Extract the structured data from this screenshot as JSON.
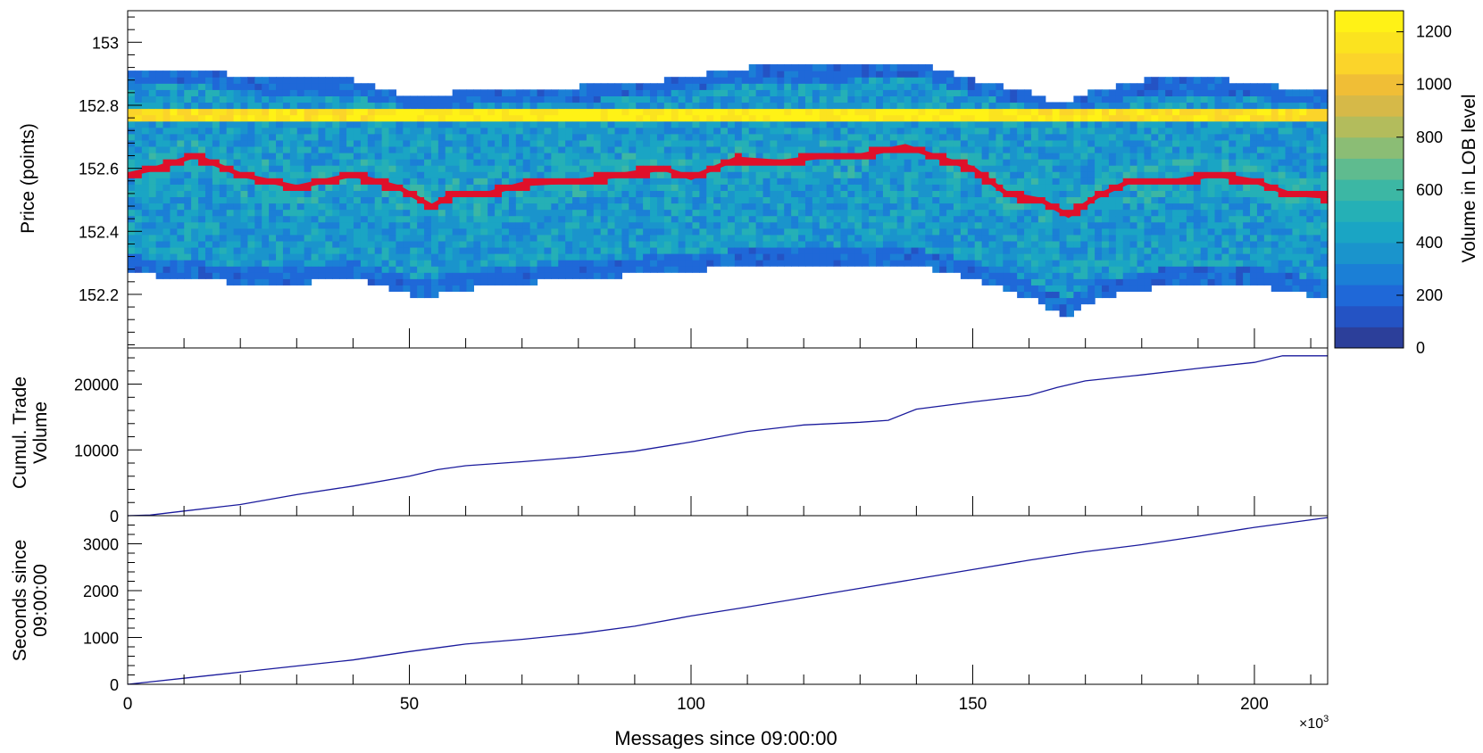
{
  "colors": {
    "mid_price": "#e0102a",
    "cumulative_line": "#1a1a9c",
    "seconds_line": "#1a1a9c",
    "axis": "#000000",
    "palette": [
      "#2c3f9a",
      "#2453c4",
      "#1f68d8",
      "#1b7fd6",
      "#1a94cc",
      "#1aa5c4",
      "#25b0b6",
      "#3cb7a4",
      "#5fbb8f",
      "#8bbd75",
      "#b3bc5c",
      "#d6b948",
      "#f0be36",
      "#fbd42a",
      "#fbe31f",
      "#fff216"
    ]
  },
  "chart_data": [
    {
      "type": "heatmap",
      "id": "lob-heatmap",
      "ylabel": "Price (points)",
      "xlim": [
        0,
        213000
      ],
      "ylim": [
        152.03,
        153.1
      ],
      "y_ticks": [
        152.2,
        152.4,
        152.6,
        152.8,
        153
      ],
      "y_tick_labels": [
        "152.2",
        "152.4",
        "152.6",
        "152.8",
        "153"
      ],
      "price_tick": 0.02,
      "colorbar": {
        "label": "Volume in LOB level",
        "range": [
          0,
          1280
        ],
        "ticks": [
          0,
          200,
          400,
          600,
          800,
          1000,
          1200
        ],
        "tick_labels": [
          "0",
          "200",
          "400",
          "600",
          "800",
          "1000",
          "1200"
        ]
      },
      "mid_price": [
        [
          0,
          152.58
        ],
        [
          5000,
          152.6
        ],
        [
          12000,
          152.64
        ],
        [
          20000,
          152.58
        ],
        [
          30000,
          152.54
        ],
        [
          40000,
          152.58
        ],
        [
          48000,
          152.54
        ],
        [
          54000,
          152.48
        ],
        [
          58000,
          152.52
        ],
        [
          64000,
          152.52
        ],
        [
          70000,
          152.55
        ],
        [
          80000,
          152.56
        ],
        [
          88000,
          152.58
        ],
        [
          95000,
          152.6
        ],
        [
          100000,
          152.57
        ],
        [
          108000,
          152.63
        ],
        [
          116000,
          152.62
        ],
        [
          124000,
          152.64
        ],
        [
          130000,
          152.64
        ],
        [
          138000,
          152.67
        ],
        [
          143000,
          152.64
        ],
        [
          150000,
          152.6
        ],
        [
          156000,
          152.52
        ],
        [
          162000,
          152.5
        ],
        [
          167000,
          152.45
        ],
        [
          172000,
          152.51
        ],
        [
          178000,
          152.56
        ],
        [
          186000,
          152.56
        ],
        [
          193000,
          152.58
        ],
        [
          200000,
          152.56
        ],
        [
          206000,
          152.52
        ],
        [
          213000,
          152.51
        ]
      ],
      "book_top": [
        [
          0,
          152.9
        ],
        [
          10000,
          152.92
        ],
        [
          25000,
          152.88
        ],
        [
          40000,
          152.88
        ],
        [
          50000,
          152.83
        ],
        [
          65000,
          152.85
        ],
        [
          80000,
          152.86
        ],
        [
          95000,
          152.88
        ],
        [
          110000,
          152.92
        ],
        [
          125000,
          152.92
        ],
        [
          140000,
          152.94
        ],
        [
          150000,
          152.88
        ],
        [
          160000,
          152.84
        ],
        [
          165000,
          152.8
        ],
        [
          170000,
          152.84
        ],
        [
          180000,
          152.88
        ],
        [
          195000,
          152.88
        ],
        [
          213000,
          152.84
        ]
      ],
      "book_bottom": [
        [
          0,
          152.28
        ],
        [
          10000,
          152.26
        ],
        [
          25000,
          152.24
        ],
        [
          40000,
          152.26
        ],
        [
          52000,
          152.2
        ],
        [
          65000,
          152.24
        ],
        [
          80000,
          152.26
        ],
        [
          95000,
          152.28
        ],
        [
          110000,
          152.3
        ],
        [
          125000,
          152.3
        ],
        [
          140000,
          152.3
        ],
        [
          150000,
          152.26
        ],
        [
          160000,
          152.2
        ],
        [
          167000,
          152.14
        ],
        [
          172000,
          152.2
        ],
        [
          185000,
          152.24
        ],
        [
          200000,
          152.24
        ],
        [
          213000,
          152.2
        ]
      ]
    },
    {
      "type": "line",
      "id": "cumulative-trade-volume",
      "ylabel_lines": [
        "Cumul. Trade",
        "Volume"
      ],
      "xlim": [
        0,
        213000
      ],
      "ylim": [
        0,
        25500
      ],
      "y_ticks": [
        0,
        10000,
        20000
      ],
      "y_tick_labels": [
        "0",
        "10000",
        "20000"
      ],
      "x": [
        0,
        4000,
        10000,
        20000,
        30000,
        40000,
        50000,
        55000,
        60000,
        70000,
        80000,
        90000,
        100000,
        110000,
        120000,
        130000,
        135000,
        140000,
        150000,
        160000,
        165000,
        170000,
        180000,
        190000,
        200000,
        205000,
        213000
      ],
      "y": [
        0,
        100,
        700,
        1700,
        3200,
        4500,
        6000,
        7000,
        7600,
        8200,
        8900,
        9800,
        11200,
        12800,
        13800,
        14200,
        14500,
        16200,
        17300,
        18300,
        19500,
        20500,
        21400,
        22400,
        23300,
        24300,
        24300
      ]
    },
    {
      "type": "line",
      "id": "seconds-since-start",
      "ylabel_lines": [
        "Seconds since",
        "09:00:00"
      ],
      "xlim": [
        0,
        213000
      ],
      "ylim": [
        0,
        3600
      ],
      "y_ticks": [
        0,
        1000,
        2000,
        3000
      ],
      "y_tick_labels": [
        "0",
        "1000",
        "2000",
        "3000"
      ],
      "xlabel": "Messages since 09:00:00",
      "x_ticks": [
        0,
        50000,
        100000,
        150000,
        200000
      ],
      "x_tick_labels": [
        "0",
        "50",
        "100",
        "150",
        "200"
      ],
      "x_exponent_base": "×10",
      "x_exponent_power": "3",
      "x": [
        0,
        10000,
        20000,
        30000,
        40000,
        50000,
        60000,
        70000,
        80000,
        90000,
        100000,
        110000,
        120000,
        130000,
        140000,
        150000,
        160000,
        170000,
        180000,
        190000,
        200000,
        213000
      ],
      "y": [
        0,
        130,
        260,
        390,
        520,
        700,
        860,
        960,
        1080,
        1240,
        1460,
        1650,
        1850,
        2050,
        2250,
        2450,
        2650,
        2830,
        2980,
        3160,
        3350,
        3560
      ]
    }
  ]
}
